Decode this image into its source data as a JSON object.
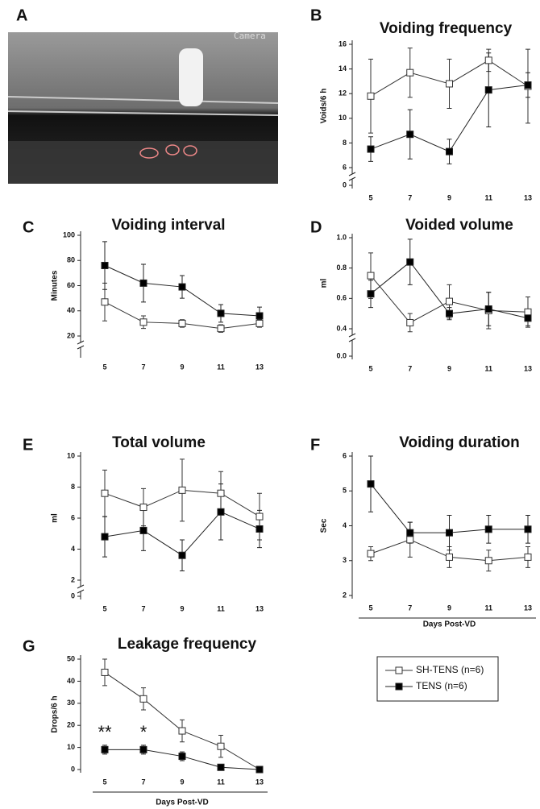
{
  "panel_a": {
    "label": "A",
    "overlay_text": "Camera"
  },
  "chart_data": [
    {
      "type": "line",
      "panel": "B",
      "title": "Voiding frequency",
      "ylabel": "Voids/6 h",
      "x": [
        5,
        7,
        9,
        11,
        13
      ],
      "xlim": [
        4.5,
        13.5
      ],
      "xticks": [
        5,
        7,
        9,
        11,
        13
      ],
      "ylim": [
        6,
        16
      ],
      "yticks": [
        6,
        8,
        10,
        12,
        14,
        16
      ],
      "y_break_tick": 0,
      "series": [
        {
          "color": "#333333",
          "fill": "#ffffff",
          "values": [
            11.8,
            13.7,
            12.8,
            14.7,
            12.6
          ],
          "errors": [
            3.0,
            2.0,
            2.0,
            0.9,
            3.0
          ]
        },
        {
          "color": "#222222",
          "fill": "#000000",
          "values": [
            7.5,
            8.7,
            7.3,
            12.3,
            12.7
          ],
          "errors": [
            1.0,
            2.0,
            1.0,
            3.0,
            1.0
          ]
        }
      ]
    },
    {
      "type": "line",
      "panel": "C",
      "title": "Voiding interval",
      "ylabel": "Minutes",
      "x": [
        5,
        7,
        9,
        11,
        13
      ],
      "xlim": [
        4.5,
        13.5
      ],
      "xticks": [
        5,
        7,
        9,
        11,
        13
      ],
      "ylim": [
        20,
        100
      ],
      "yticks": [
        20,
        40,
        60,
        80,
        100
      ],
      "series": [
        {
          "color": "#333333",
          "fill": "#ffffff",
          "values": [
            47,
            31,
            30,
            26,
            30
          ],
          "errors": [
            15,
            5,
            3,
            3,
            3
          ]
        },
        {
          "color": "#222222",
          "fill": "#000000",
          "values": [
            76,
            62,
            59,
            38,
            36
          ],
          "errors": [
            19,
            15,
            9,
            7,
            7
          ]
        }
      ]
    },
    {
      "type": "line",
      "panel": "D",
      "title": "Voided volume",
      "ylabel": "ml",
      "x": [
        5,
        7,
        9,
        11,
        13
      ],
      "xlim": [
        4.5,
        13.5
      ],
      "xticks": [
        5,
        7,
        9,
        11,
        13
      ],
      "ylim": [
        0.4,
        1
      ],
      "yticks": [
        0.4,
        0.6,
        0.8,
        {
          "value": 1,
          "label": "1.0"
        }
      ],
      "y_break_tick": {
        "value": 0,
        "label": "0.0"
      },
      "series": [
        {
          "color": "#333333",
          "fill": "#ffffff",
          "values": [
            0.75,
            0.44,
            0.58,
            0.52,
            0.51
          ],
          "errors": [
            0.15,
            0.06,
            0.11,
            0.12,
            0.1
          ]
        },
        {
          "color": "#222222",
          "fill": "#000000",
          "values": [
            0.63,
            0.84,
            0.5,
            0.53,
            0.47
          ],
          "errors": [
            0.09,
            0.15,
            0.04,
            0.11,
            0.05
          ]
        }
      ]
    },
    {
      "type": "line",
      "panel": "E",
      "title": "Total volume",
      "ylabel": "ml",
      "x": [
        5,
        7,
        9,
        11,
        13
      ],
      "xlim": [
        4.5,
        13.5
      ],
      "xticks": [
        5,
        7,
        9,
        11,
        13
      ],
      "ylim": [
        2,
        10
      ],
      "yticks": [
        2,
        4,
        6,
        8,
        10
      ],
      "y_break_tick": 0,
      "series": [
        {
          "color": "#333333",
          "fill": "#ffffff",
          "values": [
            7.6,
            6.7,
            7.8,
            7.6,
            6.1
          ],
          "errors": [
            1.5,
            1.2,
            2.0,
            1.4,
            1.5
          ]
        },
        {
          "color": "#222222",
          "fill": "#000000",
          "values": [
            4.8,
            5.2,
            3.6,
            6.4,
            5.3
          ],
          "errors": [
            1.3,
            1.3,
            1.0,
            1.8,
            1.2
          ]
        }
      ]
    },
    {
      "type": "line",
      "panel": "F",
      "title": "Voiding duration",
      "ylabel": "Sec",
      "xlabel": "Days Post-VD",
      "x": [
        5,
        7,
        9,
        11,
        13
      ],
      "xlim": [
        4.5,
        13.5
      ],
      "xticks": [
        5,
        7,
        9,
        11,
        13
      ],
      "ylim": [
        2,
        6
      ],
      "yticks": [
        2,
        3,
        4,
        5,
        6
      ],
      "series": [
        {
          "color": "#333333",
          "fill": "#ffffff",
          "values": [
            3.2,
            3.6,
            3.1,
            3.0,
            3.1
          ],
          "errors": [
            0.2,
            0.5,
            0.3,
            0.3,
            0.3
          ]
        },
        {
          "color": "#222222",
          "fill": "#000000",
          "values": [
            5.2,
            3.8,
            3.8,
            3.9,
            3.9
          ],
          "errors": [
            0.8,
            0.3,
            0.5,
            0.4,
            0.4
          ]
        }
      ]
    },
    {
      "type": "line",
      "panel": "G",
      "title": "Leakage frequency",
      "ylabel": "Drops/6 h",
      "xlabel": "Days Post-VD",
      "x": [
        5,
        7,
        9,
        11,
        13
      ],
      "xlim": [
        4.5,
        13.5
      ],
      "xticks": [
        5,
        7,
        9,
        11,
        13
      ],
      "ylim": [
        0,
        50
      ],
      "yticks": [
        0,
        10,
        20,
        30,
        40,
        50
      ],
      "annotations": [
        {
          "text": "**",
          "x": 5
        },
        {
          "text": "*",
          "x": 7
        }
      ],
      "series": [
        {
          "name": "SH-TENS (n=6)",
          "color": "#333333",
          "fill": "#ffffff",
          "values": [
            44,
            32,
            17.5,
            10.5,
            0
          ],
          "errors": [
            6,
            5,
            5,
            5,
            0
          ]
        },
        {
          "name": "TENS (n=6)",
          "color": "#222222",
          "fill": "#000000",
          "values": [
            9,
            9,
            6,
            1,
            0
          ],
          "errors": [
            2,
            2,
            2,
            0.5,
            0
          ]
        }
      ]
    }
  ]
}
